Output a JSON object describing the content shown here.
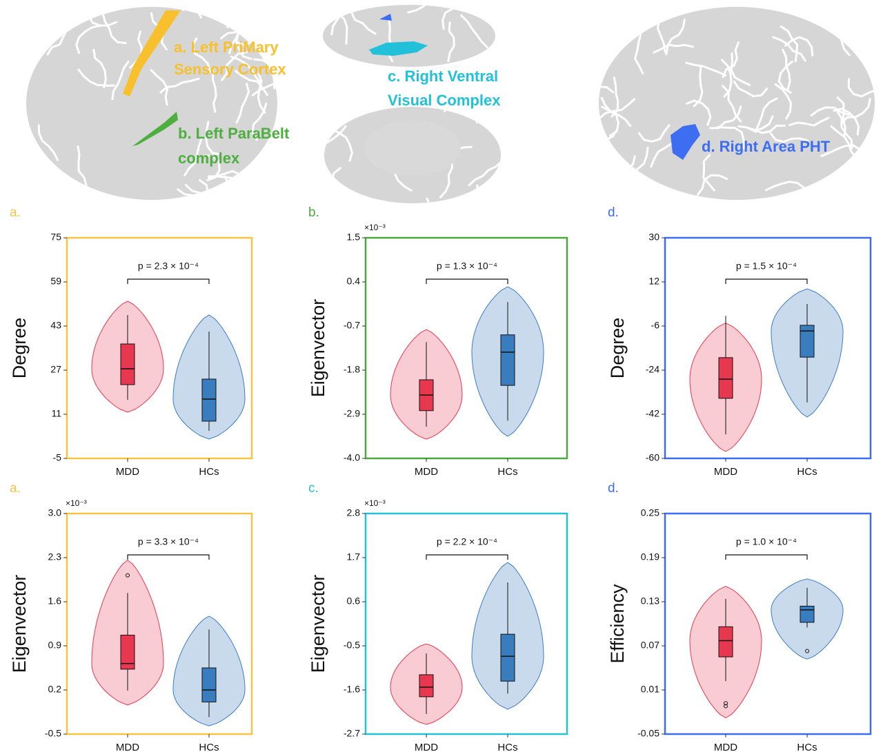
{
  "brain": {
    "regions": [
      {
        "lines": [
          "a. Left PriMary",
          "Sensory Cortex"
        ],
        "color": "#f7c02c"
      },
      {
        "lines": [
          "b. Left ParaBelt",
          "complex"
        ],
        "color": "#4caf3f"
      },
      {
        "lines": [
          "c. Right Ventral",
          "Visual Complex"
        ],
        "color": "#22c1d9"
      },
      {
        "lines": [
          "d. Right Area PHT"
        ],
        "color": "#3d6ef2"
      }
    ]
  },
  "chart_data": [
    {
      "type": "violin",
      "panel_label": "a.",
      "frame_color": "#f7c342",
      "y_label": "Degree",
      "annotation": "p = 2.3 × 10⁻⁴",
      "categories": [
        "MDD",
        "HCs"
      ],
      "ylim": [
        -5,
        75
      ],
      "yticks": [
        -5,
        11,
        27,
        43,
        59,
        75
      ],
      "boxes": [
        {
          "color": "#e8384f",
          "violin_color": "#f8c3cb",
          "whisker_low": 16.25,
          "q1": 21.75,
          "median": 27.5,
          "q3": 36.5,
          "whisker_high": 47,
          "violin_range": [
            11.75,
            52
          ]
        },
        {
          "color": "#3a7dbf",
          "violin_color": "#bfd4ea",
          "whisker_low": 5,
          "q1": 8.5,
          "median": 16.5,
          "q3": 23.75,
          "whisker_high": 41,
          "violin_range": [
            2,
            47
          ]
        }
      ]
    },
    {
      "type": "violin",
      "panel_label": "b.",
      "frame_color": "#4aa83f",
      "y_label": "Eigenvector",
      "multiplier": "×10⁻³",
      "annotation": "p = 1.3 × 10⁻⁴",
      "categories": [
        "MDD",
        "HCs"
      ],
      "ylim": [
        -4,
        1.5
      ],
      "yticks": [
        {
          "value": -4,
          "label": "-4.0"
        },
        -2.9,
        -1.8,
        -0.7,
        0.4,
        1.5
      ],
      "boxes": [
        {
          "color": "#e8384f",
          "violin_color": "#f8c3cb",
          "whisker_low": -3.21,
          "q1": -2.81,
          "median": -2.42,
          "q3": -2.04,
          "whisker_high": -1.1,
          "violin_range": [
            -3.52,
            -0.79
          ]
        },
        {
          "color": "#3a7dbf",
          "violin_color": "#bfd4ea",
          "whisker_low": -3.06,
          "q1": -2.18,
          "median": -1.35,
          "q3": -0.92,
          "whisker_high": -0.1,
          "violin_range": [
            -3.45,
            0.28
          ]
        }
      ]
    },
    {
      "type": "violin",
      "panel_label": "d.",
      "frame_color": "#3d6cf0",
      "y_label": "Degree",
      "annotation": "p = 1.5 × 10⁻⁴",
      "categories": [
        "MDD",
        "HCs"
      ],
      "ylim": [
        -60,
        30
      ],
      "yticks": [
        -60,
        -42,
        -24,
        -6,
        12,
        30
      ],
      "boxes": [
        {
          "color": "#e8384f",
          "violin_color": "#f8c3cb",
          "whisker_low": -50.2,
          "q1": -35.5,
          "median": -27.7,
          "q3": -18.9,
          "whisker_high": -1.8,
          "violin_range": [
            -57.2,
            -4.8
          ]
        },
        {
          "color": "#3a7dbf",
          "violin_color": "#bfd4ea",
          "whisker_low": -37.2,
          "q1": -18.7,
          "median": -8,
          "q3": -5.7,
          "whisker_high": 3,
          "violin_range": [
            -43.1,
            9.2
          ]
        }
      ]
    },
    {
      "type": "violin",
      "panel_label": "a.",
      "frame_color": "#f7c342",
      "y_label": "Eigenvector",
      "multiplier": "×10⁻³",
      "annotation": "p = 3.3 × 10⁻⁴",
      "categories": [
        "MDD",
        "HCs"
      ],
      "ylim": [
        -0.5,
        3
      ],
      "yticks": [
        -0.5,
        0.2,
        0.9,
        1.6,
        2.3,
        {
          "value": 3,
          "label": "3.0"
        }
      ],
      "boxes": [
        {
          "color": "#e8384f",
          "violin_color": "#f8c3cb",
          "whisker_low": 0.19,
          "q1": 0.53,
          "median": 0.62,
          "q3": 1.07,
          "whisker_high": 1.74,
          "violin_range": [
            -0.04,
            2.26
          ],
          "outliers": [
            2.02
          ]
        },
        {
          "color": "#3a7dbf",
          "violin_color": "#bfd4ea",
          "whisker_low": -0.23,
          "q1": 0.01,
          "median": 0.2,
          "q3": 0.55,
          "whisker_high": 1.16,
          "violin_range": [
            -0.37,
            1.37
          ]
        }
      ]
    },
    {
      "type": "violin",
      "panel_label": "c.",
      "frame_color": "#26c0d3",
      "y_label": "Eigenvector",
      "multiplier": "×10⁻³",
      "annotation": "p = 2.2 × 10⁻⁴",
      "categories": [
        "MDD",
        "HCs"
      ],
      "ylim": [
        -2.7,
        2.8
      ],
      "yticks": [
        -2.7,
        -1.6,
        -0.5,
        0.6,
        1.7,
        2.8
      ],
      "boxes": [
        {
          "color": "#e8384f",
          "violin_color": "#f8c3cb",
          "whisker_low": -2.2,
          "q1": -1.77,
          "median": -1.53,
          "q3": -1.22,
          "whisker_high": -0.69,
          "violin_range": [
            -2.46,
            -0.45
          ]
        },
        {
          "color": "#3a7dbf",
          "violin_color": "#bfd4ea",
          "whisker_low": -1.69,
          "q1": -1.38,
          "median": -0.76,
          "q3": -0.21,
          "whisker_high": 1.08,
          "violin_range": [
            -2.08,
            1.58
          ]
        }
      ]
    },
    {
      "type": "violin",
      "panel_label": "d.",
      "frame_color": "#3d6cf0",
      "y_label": "Efficiency",
      "annotation": "p = 1.0 × 10⁻⁴",
      "categories": [
        "MDD",
        "HCs"
      ],
      "ylim": [
        -0.05,
        0.25
      ],
      "yticks": [
        -0.05,
        0.01,
        0.07,
        0.13,
        0.19,
        0.25
      ],
      "boxes": [
        {
          "color": "#e8384f",
          "violin_color": "#f8c3cb",
          "whisker_low": 0.022,
          "q1": 0.055,
          "median": 0.077,
          "q3": 0.096,
          "whisker_high": 0.134,
          "violin_range": [
            -0.028,
            0.151
          ],
          "outliers": [
            -0.008,
            -0.012
          ]
        },
        {
          "color": "#3a7dbf",
          "violin_color": "#bfd4ea",
          "whisker_low": 0.095,
          "q1": 0.102,
          "median": 0.119,
          "q3": 0.124,
          "whisker_high": 0.149,
          "violin_range": [
            0.052,
            0.161
          ],
          "outliers": [
            0.063
          ]
        }
      ]
    }
  ]
}
